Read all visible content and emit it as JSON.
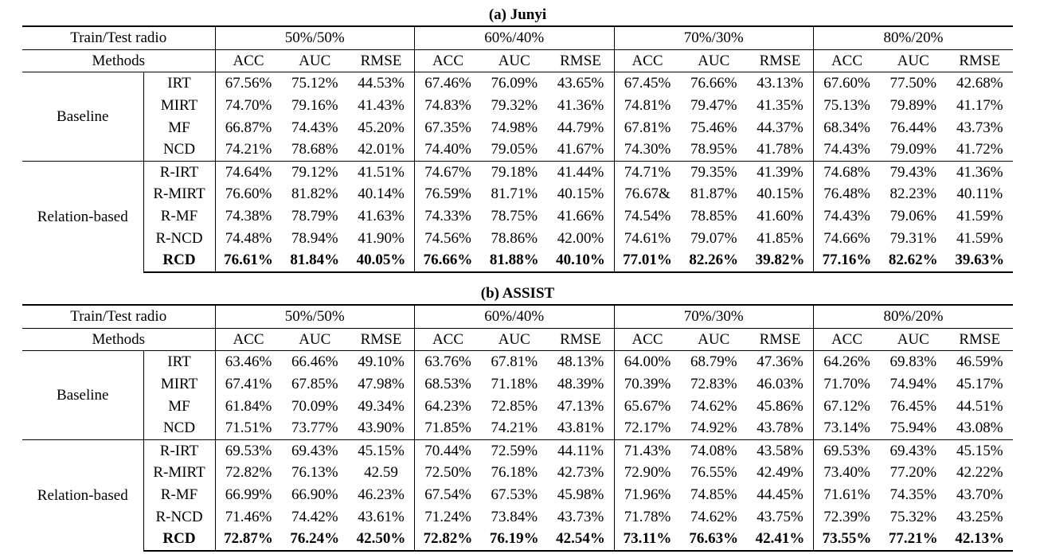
{
  "tables": [
    {
      "caption": "(a) Junyi",
      "header_left": "Train/Test radio",
      "methods_label": "Methods",
      "splits": [
        "50%/50%",
        "60%/40%",
        "70%/30%",
        "80%/20%"
      ],
      "metrics": [
        "ACC",
        "AUC",
        "RMSE"
      ],
      "groups": [
        {
          "label": "Baseline",
          "rows": [
            {
              "method": "IRT",
              "values": [
                "67.56%",
                "75.12%",
                "44.53%",
                "67.46%",
                "76.09%",
                "43.65%",
                "67.45%",
                "76.66%",
                "43.13%",
                "67.60%",
                "77.50%",
                "42.68%"
              ]
            },
            {
              "method": "MIRT",
              "values": [
                "74.70%",
                "79.16%",
                "41.43%",
                "74.83%",
                "79.32%",
                "41.36%",
                "74.81%",
                "79.47%",
                "41.35%",
                "75.13%",
                "79.89%",
                "41.17%"
              ]
            },
            {
              "method": "MF",
              "values": [
                "66.87%",
                "74.43%",
                "45.20%",
                "67.35%",
                "74.98%",
                "44.79%",
                "67.81%",
                "75.46%",
                "44.37%",
                "68.34%",
                "76.44%",
                "43.73%"
              ]
            },
            {
              "method": "NCD",
              "values": [
                "74.21%",
                "78.68%",
                "42.01%",
                "74.40%",
                "79.05%",
                "41.67%",
                "74.30%",
                "78.95%",
                "41.78%",
                "74.43%",
                "79.09%",
                "41.72%"
              ]
            }
          ]
        },
        {
          "label": "Relation-based",
          "rows": [
            {
              "method": "R-IRT",
              "values": [
                "74.64%",
                "79.12%",
                "41.51%",
                "74.67%",
                "79.18%",
                "41.44%",
                "74.71%",
                "79.35%",
                "41.39%",
                "74.68%",
                "79.43%",
                "41.36%"
              ]
            },
            {
              "method": "R-MIRT",
              "values": [
                "76.60%",
                "81.82%",
                "40.14%",
                "76.59%",
                "81.71%",
                "40.15%",
                "76.67&",
                "81.87%",
                "40.15%",
                "76.48%",
                "82.23%",
                "40.11%"
              ]
            },
            {
              "method": "R-MF",
              "values": [
                "74.38%",
                "78.79%",
                "41.63%",
                "74.33%",
                "78.75%",
                "41.66%",
                "74.54%",
                "78.85%",
                "41.60%",
                "74.43%",
                "79.06%",
                "41.59%"
              ]
            },
            {
              "method": "R-NCD",
              "values": [
                "74.48%",
                "78.94%",
                "41.90%",
                "74.56%",
                "78.86%",
                "42.00%",
                "74.61%",
                "79.07%",
                "41.85%",
                "74.66%",
                "79.31%",
                "41.59%"
              ]
            },
            {
              "method": "RCD",
              "bold": true,
              "values": [
                "76.61%",
                "81.84%",
                "40.05%",
                "76.66%",
                "81.88%",
                "40.10%",
                "77.01%",
                "82.26%",
                "39.82%",
                "77.16%",
                "82.62%",
                "39.63%"
              ]
            }
          ]
        }
      ]
    },
    {
      "caption": "(b) ASSIST",
      "header_left": "Train/Test radio",
      "methods_label": "Methods",
      "splits": [
        "50%/50%",
        "60%/40%",
        "70%/30%",
        "80%/20%"
      ],
      "metrics": [
        "ACC",
        "AUC",
        "RMSE"
      ],
      "groups": [
        {
          "label": "Baseline",
          "rows": [
            {
              "method": "IRT",
              "values": [
                "63.46%",
                "66.46%",
                "49.10%",
                "63.76%",
                "67.81%",
                "48.13%",
                "64.00%",
                "68.79%",
                "47.36%",
                "64.26%",
                "69.83%",
                "46.59%"
              ]
            },
            {
              "method": "MIRT",
              "values": [
                "67.41%",
                "67.85%",
                "47.98%",
                "68.53%",
                "71.18%",
                "48.39%",
                "70.39%",
                "72.83%",
                "46.03%",
                "71.70%",
                "74.94%",
                "45.17%"
              ]
            },
            {
              "method": "MF",
              "values": [
                "61.84%",
                "70.09%",
                "49.34%",
                "64.23%",
                "72.85%",
                "47.13%",
                "65.67%",
                "74.62%",
                "45.86%",
                "67.12%",
                "76.45%",
                "44.51%"
              ]
            },
            {
              "method": "NCD",
              "values": [
                "71.51%",
                "73.77%",
                "43.90%",
                "71.85%",
                "74.21%",
                "43.81%",
                "72.17%",
                "74.92%",
                "43.78%",
                "73.14%",
                "75.94%",
                "43.08%"
              ]
            }
          ]
        },
        {
          "label": "Relation-based",
          "rows": [
            {
              "method": "R-IRT",
              "values": [
                "69.53%",
                "69.43%",
                "45.15%",
                "70.44%",
                "72.59%",
                "44.11%",
                "71.43%",
                "74.08%",
                "43.58%",
                "69.53%",
                "69.43%",
                "45.15%"
              ]
            },
            {
              "method": "R-MIRT",
              "values": [
                "72.82%",
                "76.13%",
                "42.59",
                "72.50%",
                "76.18%",
                "42.73%",
                "72.90%",
                "76.55%",
                "42.49%",
                "73.40%",
                "77.20%",
                "42.22%"
              ]
            },
            {
              "method": "R-MF",
              "values": [
                "66.99%",
                "66.90%",
                "46.23%",
                "67.54%",
                "67.53%",
                "45.98%",
                "71.96%",
                "74.85%",
                "44.45%",
                "71.61%",
                "74.35%",
                "43.70%"
              ]
            },
            {
              "method": "R-NCD",
              "values": [
                "71.46%",
                "74.42%",
                "43.61%",
                "71.24%",
                "73.84%",
                "43.73%",
                "71.78%",
                "74.62%",
                "43.75%",
                "72.39%",
                "75.32%",
                "43.25%"
              ]
            },
            {
              "method": "RCD",
              "bold": true,
              "values": [
                "72.87%",
                "76.24%",
                "42.50%",
                "72.82%",
                "76.19%",
                "42.54%",
                "73.11%",
                "76.63%",
                "42.41%",
                "73.55%",
                "77.21%",
                "42.13%"
              ]
            }
          ]
        }
      ]
    }
  ]
}
